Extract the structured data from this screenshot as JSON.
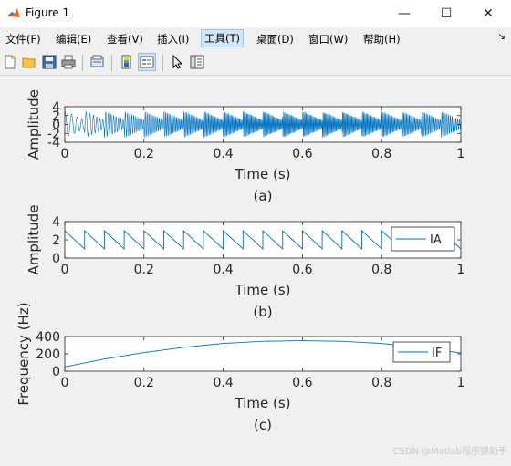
{
  "window": {
    "title": "Figure 1",
    "minimize": "—",
    "maximize": "☐",
    "close": "✕"
  },
  "menu": {
    "items": [
      "文件(F)",
      "编辑(E)",
      "查看(V)",
      "插入(I)",
      "工具(T)",
      "桌面(D)",
      "窗口(W)",
      "帮助(H)"
    ],
    "active": "工具(T)",
    "overflow_arrow": "↘"
  },
  "toolbar": {
    "icons": [
      "new-figure-icon",
      "open-file-icon",
      "save-icon",
      "print-icon",
      "print-preview-icon",
      "colorbar-icon",
      "legend-icon",
      "pointer-icon",
      "property-inspector-icon"
    ]
  },
  "colors": {
    "line": "#0072bd",
    "axes": "#262626",
    "background": "#f0f0f0"
  },
  "watermark": "CSDN @Matlab程序猿助手",
  "chart_data": [
    {
      "type": "line",
      "caption": "(a)",
      "xlabel": "Time (s)",
      "ylabel": "Amplitude",
      "xlim": [
        0,
        1
      ],
      "ylim": [
        -4,
        4
      ],
      "xticks": [
        "0",
        "0.2",
        "0.4",
        "0.6",
        "0.8",
        "1"
      ],
      "yticks": [
        "-4",
        "-2",
        "0",
        "2",
        "4"
      ],
      "series": [
        {
          "description_of_signal": "AM-FM oscillation, amplitude sawtooth 1 to 3 with 20 cycles, instantaneous frequency from about 50 Hz rising to about 350 Hz near t=0.6 s then falling to about 200 Hz",
          "x": [
            0,
            1
          ]
        }
      ]
    },
    {
      "type": "line",
      "caption": "(b)",
      "xlabel": "Time (s)",
      "ylabel": "Amplitude",
      "xlim": [
        0,
        1
      ],
      "ylim": [
        0,
        4
      ],
      "xticks": [
        "0",
        "0.2",
        "0.4",
        "0.6",
        "0.8",
        "1"
      ],
      "yticks": [
        "0",
        "2",
        "4"
      ],
      "legend": "IA",
      "legend_location": "right",
      "series": [
        {
          "name": "IA",
          "shape": "sawtooth",
          "cycles": 20,
          "min": 1,
          "max": 3
        }
      ]
    },
    {
      "type": "line",
      "caption": "(c)",
      "xlabel": "Time (s)",
      "ylabel": "Frequency (Hz)",
      "xlim": [
        0,
        1
      ],
      "ylim": [
        0,
        400
      ],
      "xticks": [
        "0",
        "0.2",
        "0.4",
        "0.6",
        "0.8",
        "1"
      ],
      "yticks": [
        "0",
        "200",
        "400"
      ],
      "legend": "IF",
      "legend_location": "top-right",
      "series": [
        {
          "name": "IF",
          "x": [
            0,
            0.1,
            0.2,
            0.3,
            0.4,
            0.5,
            0.6,
            0.7,
            0.8,
            0.9,
            1.0
          ],
          "values": [
            50,
            140,
            215,
            275,
            320,
            345,
            352,
            345,
            320,
            275,
            210
          ]
        }
      ]
    }
  ]
}
